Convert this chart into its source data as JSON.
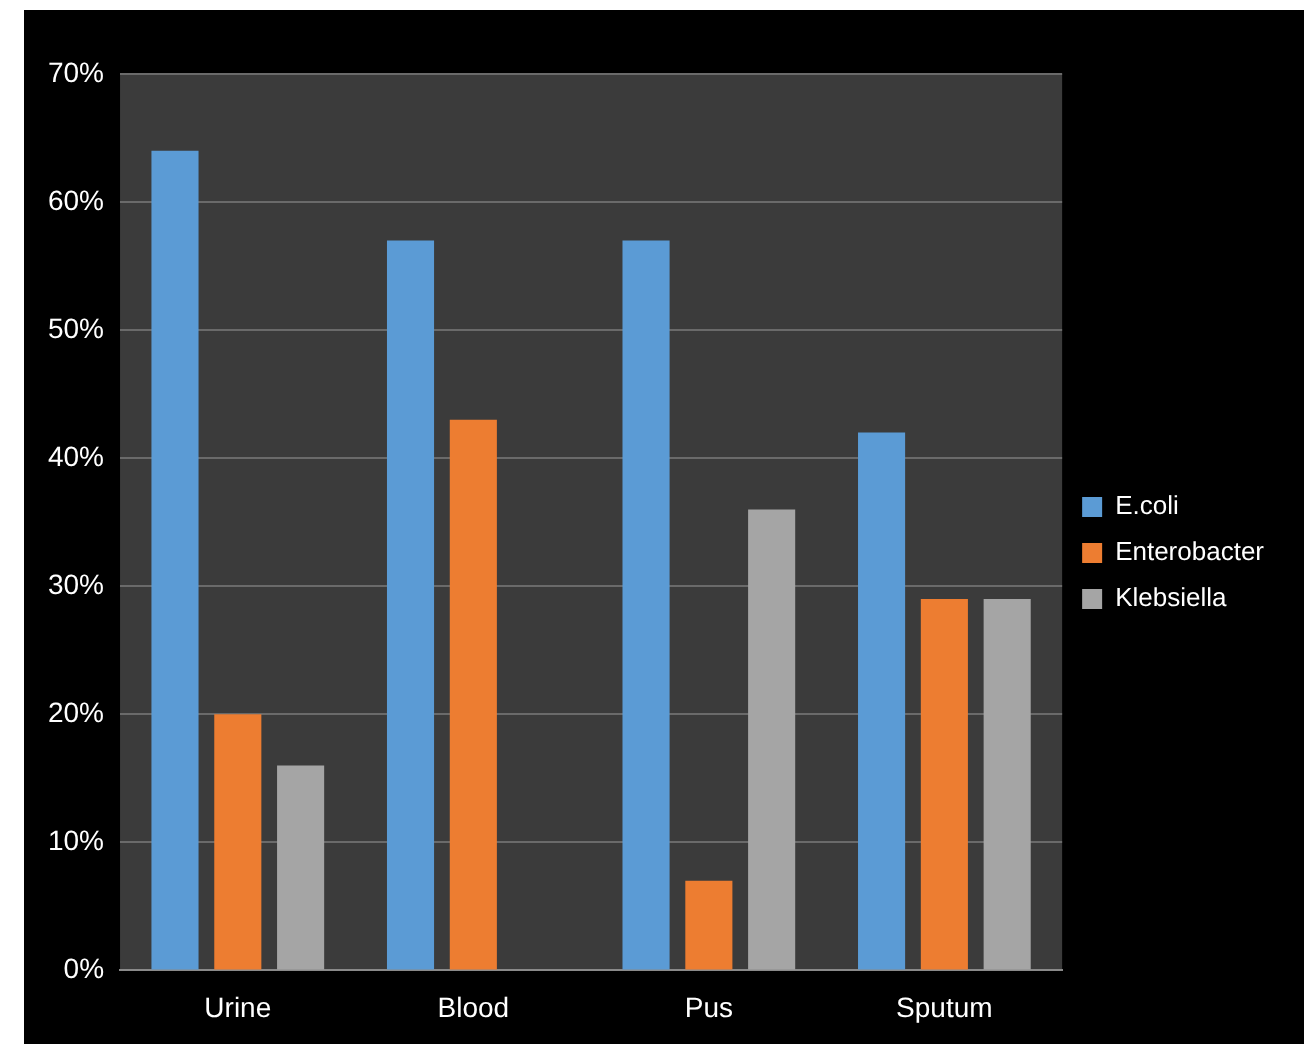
{
  "chart_data": {
    "type": "bar",
    "categories": [
      "Urine",
      "Blood",
      "Pus",
      "Sputum"
    ],
    "series": [
      {
        "name": "E.coli",
        "color": "#5b9bd5",
        "values": [
          64,
          57,
          57,
          42
        ]
      },
      {
        "name": "Enterobacter",
        "color": "#ed7d31",
        "values": [
          20,
          43,
          7,
          29
        ]
      },
      {
        "name": "Klebsiella",
        "color": "#a5a5a5",
        "values": [
          16,
          0,
          36,
          29
        ]
      }
    ],
    "ylim": [
      0,
      70
    ],
    "yticks": [
      {
        "value": 0,
        "label": "0%"
      },
      {
        "value": 10,
        "label": "10%"
      },
      {
        "value": 20,
        "label": "20%"
      },
      {
        "value": 30,
        "label": "30%"
      },
      {
        "value": 40,
        "label": "40%"
      },
      {
        "value": 50,
        "label": "50%"
      },
      {
        "value": 60,
        "label": "60%"
      },
      {
        "value": 70,
        "label": "70%"
      }
    ],
    "grid": "y",
    "legend": "right"
  }
}
